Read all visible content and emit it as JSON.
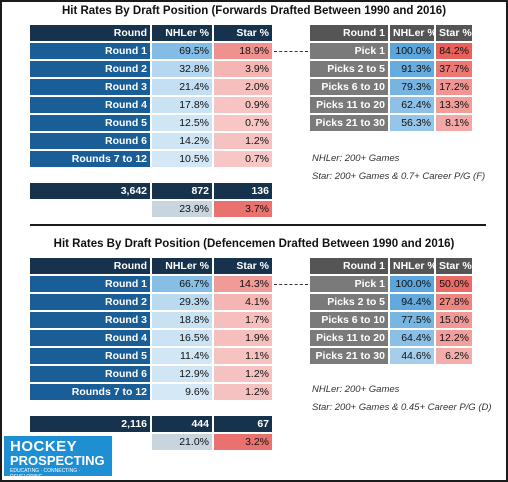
{
  "sections": [
    {
      "title": "Hit Rates By Draft Position (Forwards Drafted Between 1990 and 2016)",
      "left_headers": [
        "Round",
        "NHLer %",
        "Star %"
      ],
      "left_rows": [
        {
          "label": "Round 1",
          "nhler": "69.5%",
          "star": "18.9%",
          "nhler_val": 69.5,
          "star_val": 18.9
        },
        {
          "label": "Round 2",
          "nhler": "32.8%",
          "star": "3.9%",
          "nhler_val": 32.8,
          "star_val": 3.9
        },
        {
          "label": "Round 3",
          "nhler": "21.4%",
          "star": "2.0%",
          "nhler_val": 21.4,
          "star_val": 2.0
        },
        {
          "label": "Round 4",
          "nhler": "17.8%",
          "star": "0.9%",
          "nhler_val": 17.8,
          "star_val": 0.9
        },
        {
          "label": "Round 5",
          "nhler": "12.5%",
          "star": "0.7%",
          "nhler_val": 12.5,
          "star_val": 0.7
        },
        {
          "label": "Round 6",
          "nhler": "14.2%",
          "star": "1.2%",
          "nhler_val": 14.2,
          "star_val": 1.2
        },
        {
          "label": "Rounds 7 to 12",
          "nhler": "10.5%",
          "star": "0.7%",
          "nhler_val": 10.5,
          "star_val": 0.7
        }
      ],
      "right_headers": [
        "Round 1",
        "NHLer %",
        "Star %"
      ],
      "right_rows": [
        {
          "label": "Pick 1",
          "nhler": "100.0%",
          "star": "84.2%",
          "nhler_val": 100.0,
          "star_val": 84.2
        },
        {
          "label": "Picks 2 to 5",
          "nhler": "91.3%",
          "star": "37.7%",
          "nhler_val": 91.3,
          "star_val": 37.7
        },
        {
          "label": "Picks 6 to 10",
          "nhler": "79.3%",
          "star": "17.2%",
          "nhler_val": 79.3,
          "star_val": 17.2
        },
        {
          "label": "Picks 11 to 20",
          "nhler": "62.4%",
          "star": "13.3%",
          "nhler_val": 62.4,
          "star_val": 13.3
        },
        {
          "label": "Picks 21 to 30",
          "nhler": "56.3%",
          "star": "8.1%",
          "nhler_val": 56.3,
          "star_val": 8.1
        }
      ],
      "note1": "NHLer: 200+ Games",
      "note2": "Star: 200+ Games & 0.7+ Career P/G (F)",
      "totals": {
        "count": "3,642",
        "nhler": "872",
        "star": "136"
      },
      "rates": {
        "nhler": "23.9%",
        "star": "3.7%"
      }
    },
    {
      "title": "Hit Rates By Draft Position (Defencemen Drafted Between 1990 and 2016)",
      "left_headers": [
        "Round",
        "NHLer %",
        "Star %"
      ],
      "left_rows": [
        {
          "label": "Round 1",
          "nhler": "66.7%",
          "star": "14.3%",
          "nhler_val": 66.7,
          "star_val": 14.3
        },
        {
          "label": "Round 2",
          "nhler": "29.3%",
          "star": "4.1%",
          "nhler_val": 29.3,
          "star_val": 4.1
        },
        {
          "label": "Round 3",
          "nhler": "18.8%",
          "star": "1.7%",
          "nhler_val": 18.8,
          "star_val": 1.7
        },
        {
          "label": "Round 4",
          "nhler": "16.5%",
          "star": "1.9%",
          "nhler_val": 16.5,
          "star_val": 1.9
        },
        {
          "label": "Round 5",
          "nhler": "11.4%",
          "star": "1.1%",
          "nhler_val": 11.4,
          "star_val": 1.1
        },
        {
          "label": "Round 6",
          "nhler": "12.9%",
          "star": "1.2%",
          "nhler_val": 12.9,
          "star_val": 1.2
        },
        {
          "label": "Rounds 7 to 12",
          "nhler": "9.6%",
          "star": "1.2%",
          "nhler_val": 9.6,
          "star_val": 1.2
        }
      ],
      "right_headers": [
        "Round 1",
        "NHLer %",
        "Star %"
      ],
      "right_rows": [
        {
          "label": "Pick 1",
          "nhler": "100.0%",
          "star": "50.0%",
          "nhler_val": 100.0,
          "star_val": 50.0
        },
        {
          "label": "Picks 2 to 5",
          "nhler": "94.4%",
          "star": "27.8%",
          "nhler_val": 94.4,
          "star_val": 27.8
        },
        {
          "label": "Picks 6 to 10",
          "nhler": "77.5%",
          "star": "15.0%",
          "nhler_val": 77.5,
          "star_val": 15.0
        },
        {
          "label": "Picks 11 to 20",
          "nhler": "64.4%",
          "star": "12.2%",
          "nhler_val": 64.4,
          "star_val": 12.2
        },
        {
          "label": "Picks 21 to 30",
          "nhler": "44.6%",
          "star": "6.2%",
          "nhler_val": 44.6,
          "star_val": 6.2
        }
      ],
      "note1": "NHLer: 200+ Games",
      "note2": "Star: 200+ Games & 0.45+ Career P/G (D)",
      "totals": {
        "count": "2,116",
        "nhler": "444",
        "star": "67"
      },
      "rates": {
        "nhler": "21.0%",
        "star": "3.2%"
      }
    }
  ],
  "logo": {
    "line1": "HOCKEY",
    "line2": "PROSPECTING",
    "line3": "EDUCATING · CONNECTING · DEVELOPING"
  },
  "colors": {
    "header": "#17324d",
    "label_blue": "#1a5e98",
    "label_grey": "#7a7a7a",
    "nhler_scale": "#5aa6dc",
    "star_scale": "#e8605c"
  }
}
